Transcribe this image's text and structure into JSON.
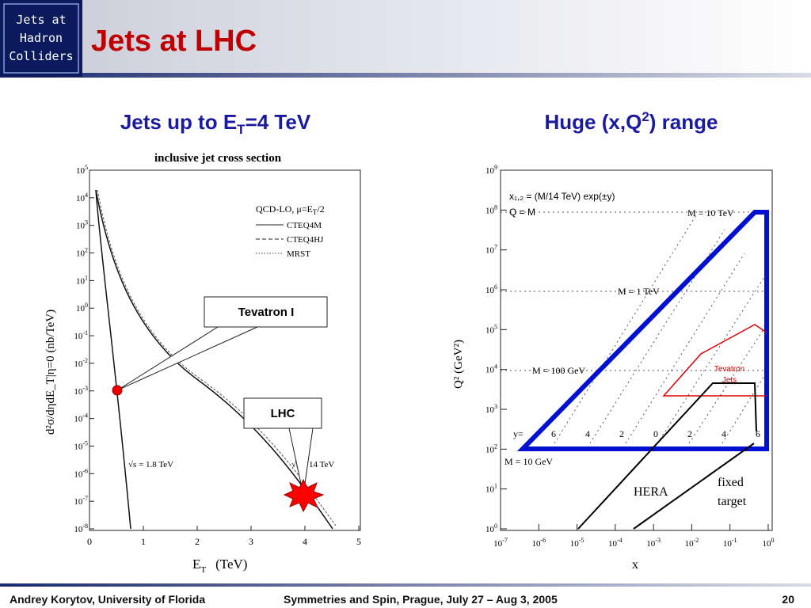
{
  "badge": [
    "Jets at",
    "Hadron",
    "Colliders"
  ],
  "title": "Jets at LHC",
  "left": {
    "heading": {
      "text": "Jets up to E",
      "sub": "T",
      "rest": "=4 TeV"
    },
    "plot_title": "inclusive jet cross section",
    "legend_title": {
      "text": "QCD-LO, μ=E",
      "sub": "T",
      "rest": "/2"
    },
    "legend": [
      "CTEQ4M",
      "CTEQ4HJ",
      "MRST"
    ],
    "y_label": "d²σ/dηdE_T|η=0   (nb/TeV)",
    "x_label": {
      "text": "E",
      "sub": "T",
      "rest": "(TeV)"
    },
    "tick_base": "10",
    "y_exponents": [
      "5",
      "4",
      "3",
      "2",
      "1",
      "0",
      "-1",
      "-2",
      "-3",
      "-4",
      "-5",
      "-6",
      "-7",
      "-8"
    ],
    "x_ticks": [
      "0",
      "1",
      "2",
      "3",
      "4",
      "5"
    ],
    "annotations": [
      "√s = 1.8 TeV",
      "√s = 14 TeV"
    ],
    "callouts": [
      "Tevatron I",
      "LHC"
    ]
  },
  "right": {
    "heading": {
      "text": "Huge (x,Q",
      "sup": "2",
      "rest": ") range"
    },
    "y_label": "Q²  (GeV²)",
    "x_label": "x",
    "tick_base": "10",
    "y_exponents": [
      "9",
      "8",
      "7",
      "6",
      "5",
      "4",
      "3",
      "2",
      "1",
      "0"
    ],
    "x_exponents": [
      "-7",
      "-6",
      "-5",
      "-4",
      "-3",
      "-2",
      "-1",
      "0"
    ],
    "legend": [
      "x₁,₂ = (M/14 TeV) exp(±y)",
      "Q = M"
    ],
    "mass_labels": [
      "M = 10 TeV",
      "M = 1 TeV",
      "M = 100 GeV",
      "M = 10 GeV"
    ],
    "y_prefix": "y=",
    "y_values": [
      "6",
      "4",
      "2",
      "0",
      "2",
      "4",
      "6"
    ],
    "regions": [
      "HERA",
      "fixed",
      "target",
      "Tevatron",
      "Jets"
    ]
  },
  "footer": {
    "author": "Andrey Korytov, University of Florida",
    "event": "Symmetries and Spin, Prague, July 27 – Aug 3, 2005",
    "page": "20"
  }
}
